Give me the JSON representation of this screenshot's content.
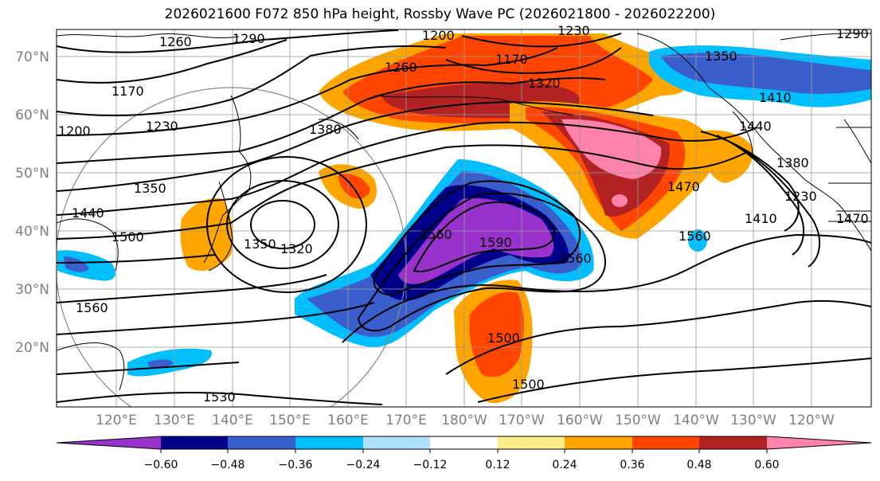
{
  "title": "2026021600 F072 850 hPa height, Rossby Wave PC (2026021800 - 2026022200)",
  "lat_labels": [
    "70°N",
    "60°N",
    "50°N",
    "40°N",
    "30°N",
    "20°N"
  ],
  "lon_labels": [
    "120°E",
    "130°E",
    "140°E",
    "150°E",
    "160°E",
    "170°E",
    "180°W",
    "170°W",
    "160°W",
    "150°W",
    "140°W",
    "130°W",
    "120°W"
  ],
  "colorbar": {
    "ticks": [
      "−0.60",
      "−0.48",
      "−0.36",
      "−0.24",
      "−0.12",
      "0.12",
      "0.24",
      "0.36",
      "0.48",
      "0.60"
    ],
    "colors": [
      "#9932cc",
      "#00008b",
      "#3a5fcd",
      "#00bfff",
      "#b0e2ff",
      "#ffffff",
      "#ffec8b",
      "#ffa500",
      "#ff4500",
      "#b22222",
      "#ff82ab"
    ]
  },
  "contour_labels": [
    "1260",
    "1290",
    "1200",
    "1230",
    "1170",
    "1290",
    "1170",
    "1260",
    "1200",
    "1230",
    "1380",
    "1350",
    "1440",
    "1500",
    "1350",
    "1320",
    "1560",
    "1560",
    "1530",
    "1590",
    "1560",
    "1440",
    "1380",
    "1410",
    "1470",
    "1560",
    "1500",
    "1500",
    "1320",
    "1350",
    "1410",
    "1470",
    "1230"
  ]
}
